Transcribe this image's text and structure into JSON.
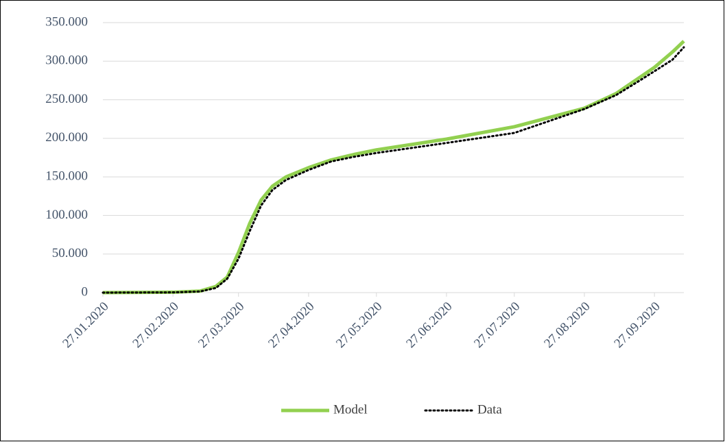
{
  "chart_data": {
    "type": "line",
    "x": [
      "27.01.2020",
      "27.02.2020",
      "10.03.2020",
      "17.03.2020",
      "22.03.2020",
      "27.03.2020",
      "01.04.2020",
      "06.04.2020",
      "11.04.2020",
      "17.04.2020",
      "27.04.2020",
      "07.05.2020",
      "17.05.2020",
      "27.05.2020",
      "27.06.2020",
      "27.07.2020",
      "27.08.2020",
      "10.09.2020",
      "20.09.2020",
      "27.09.2020",
      "05.10.2020",
      "10.10.2020"
    ],
    "series": [
      {
        "name": "Model",
        "color": "#92d050",
        "style": "solid",
        "values": [
          0,
          500,
          2000,
          8000,
          20000,
          52000,
          90000,
          120000,
          138000,
          150000,
          162000,
          172000,
          179000,
          185000,
          199000,
          215000,
          239000,
          258000,
          278000,
          292000,
          312000,
          326000
        ]
      },
      {
        "name": "Data",
        "color": "#000000",
        "style": "dotted",
        "values": [
          0,
          300,
          1500,
          6000,
          18000,
          44000,
          80000,
          113000,
          133000,
          146000,
          159000,
          170000,
          176000,
          181000,
          194000,
          207000,
          238000,
          256000,
          274000,
          287000,
          302000,
          318000
        ]
      }
    ],
    "xlim": [
      "27.01.2020",
      "10.10.2020"
    ],
    "xticks": [
      "27.01.2020",
      "27.02.2020",
      "27.03.2020",
      "27.04.2020",
      "27.05.2020",
      "27.06.2020",
      "27.07.2020",
      "27.08.2020",
      "27.09.2020"
    ],
    "ylim": [
      0,
      350000
    ],
    "yticks": [
      0,
      {
        "value": 50000,
        "label": "50.000"
      },
      {
        "value": 100000,
        "label": "100.000"
      },
      {
        "value": 150000,
        "label": "150.000"
      },
      {
        "value": 200000,
        "label": "200.000"
      },
      {
        "value": 250000,
        "label": "250.000"
      },
      {
        "value": 300000,
        "label": "300.000"
      },
      {
        "value": 350000,
        "label": "350.000"
      }
    ],
    "grid": true,
    "legend": "bottom"
  }
}
